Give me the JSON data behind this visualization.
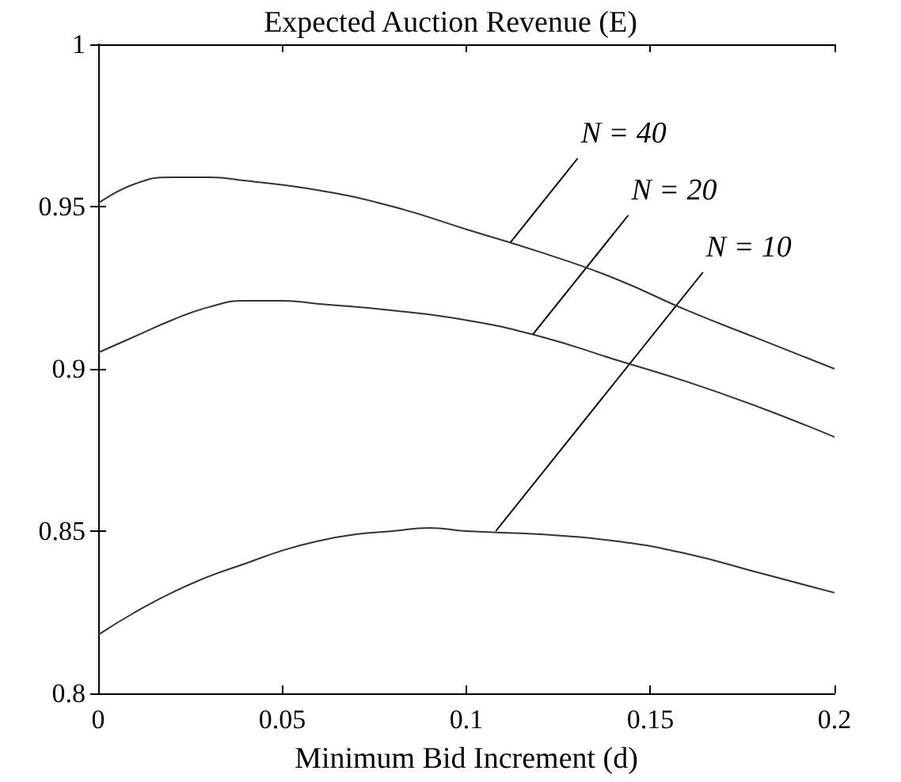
{
  "chart_data": {
    "type": "line",
    "title": "Expected Auction Revenue (E)",
    "xlabel": "Minimum Bid Increment (d)",
    "xlim": [
      0,
      0.2
    ],
    "xticks": [
      0,
      0.05,
      0.1,
      0.15,
      0.2
    ],
    "ylim": [
      0.8,
      1
    ],
    "yticks": [
      0.8,
      0.85,
      0.9,
      0.95,
      1
    ],
    "grid": false,
    "marker": "none",
    "line_style": "solid",
    "series": [
      {
        "color": "#333333",
        "x": [
          0,
          0.01,
          0.02,
          0.03,
          0.04,
          0.06,
          0.08,
          0.1,
          0.12,
          0.14,
          0.16,
          0.18,
          0.2
        ],
        "values": [
          0.951,
          0.957,
          0.959,
          0.959,
          0.958,
          0.955,
          0.95,
          0.943,
          0.936,
          0.928,
          0.918,
          0.909,
          0.9
        ]
      },
      {
        "color": "#333333",
        "x": [
          0,
          0.01,
          0.02,
          0.03,
          0.04,
          0.05,
          0.06,
          0.08,
          0.1,
          0.12,
          0.14,
          0.16,
          0.18,
          0.2
        ],
        "values": [
          0.905,
          0.91,
          0.915,
          0.919,
          0.921,
          0.921,
          0.92,
          0.918,
          0.915,
          0.91,
          0.903,
          0.896,
          0.888,
          0.879
        ]
      },
      {
        "color": "#333333",
        "x": [
          0,
          0.01,
          0.02,
          0.03,
          0.04,
          0.05,
          0.06,
          0.07,
          0.08,
          0.09,
          0.1,
          0.12,
          0.14,
          0.16,
          0.18,
          0.2
        ],
        "values": [
          0.818,
          0.825,
          0.831,
          0.836,
          0.84,
          0.844,
          0.847,
          0.849,
          0.85,
          0.851,
          0.85,
          0.849,
          0.847,
          0.843,
          0.837,
          0.831
        ]
      }
    ],
    "annotations": [
      {
        "text": "N = 40",
        "x": 0.112,
        "y": 0.939
      },
      {
        "text": "N = 20",
        "x": 0.118,
        "y": 0.9105
      },
      {
        "text": "N = 10",
        "x": 0.108,
        "y": 0.85
      }
    ]
  }
}
